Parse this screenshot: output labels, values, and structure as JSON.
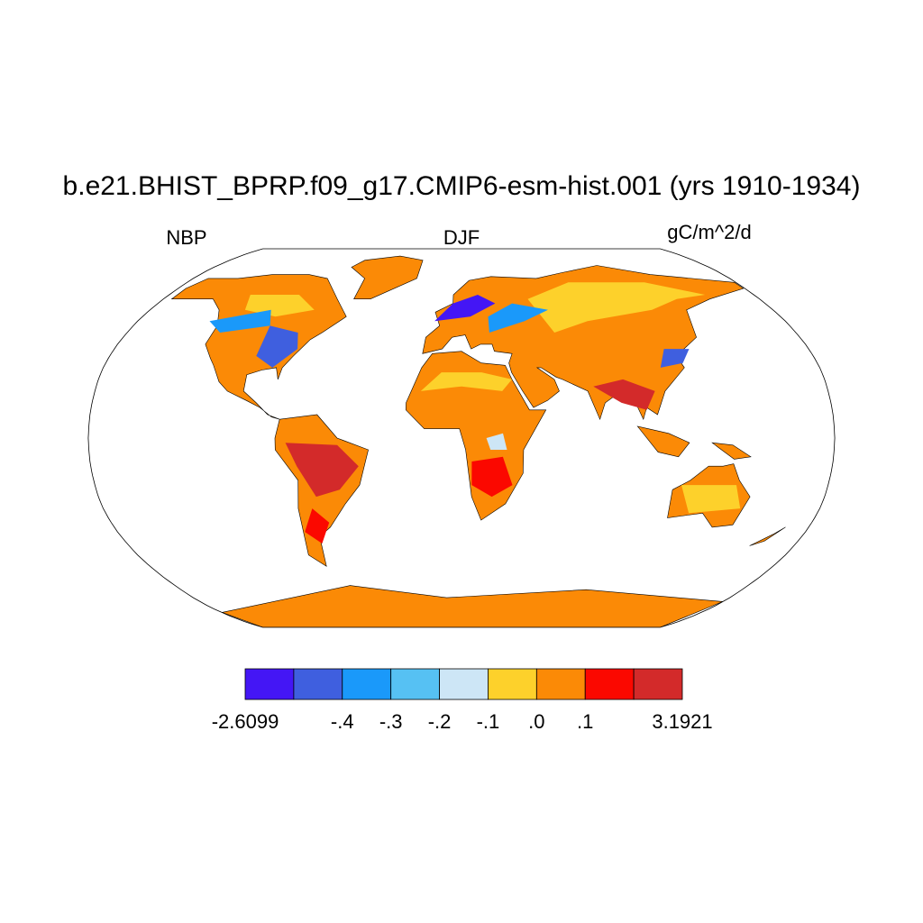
{
  "title": "b.e21.BHIST_BPRP.f09_g17.CMIP6-esm-hist.001 (yrs 1910-1934)",
  "left_label": "NBP",
  "center_label": "DJF",
  "right_label": "gC/m^2/d",
  "colorbar": {
    "colors": [
      "#4416f5",
      "#3f5fdf",
      "#1a99fa",
      "#56c1f3",
      "#cde6f6",
      "#fdd12b",
      "#fb8a06",
      "#fb0800",
      "#d32a2a"
    ],
    "labels": [
      "-2.6099",
      null,
      "-.4",
      "-.3",
      "-.2",
      "-.1",
      ".0",
      ".1",
      null,
      "3.1921"
    ]
  }
}
